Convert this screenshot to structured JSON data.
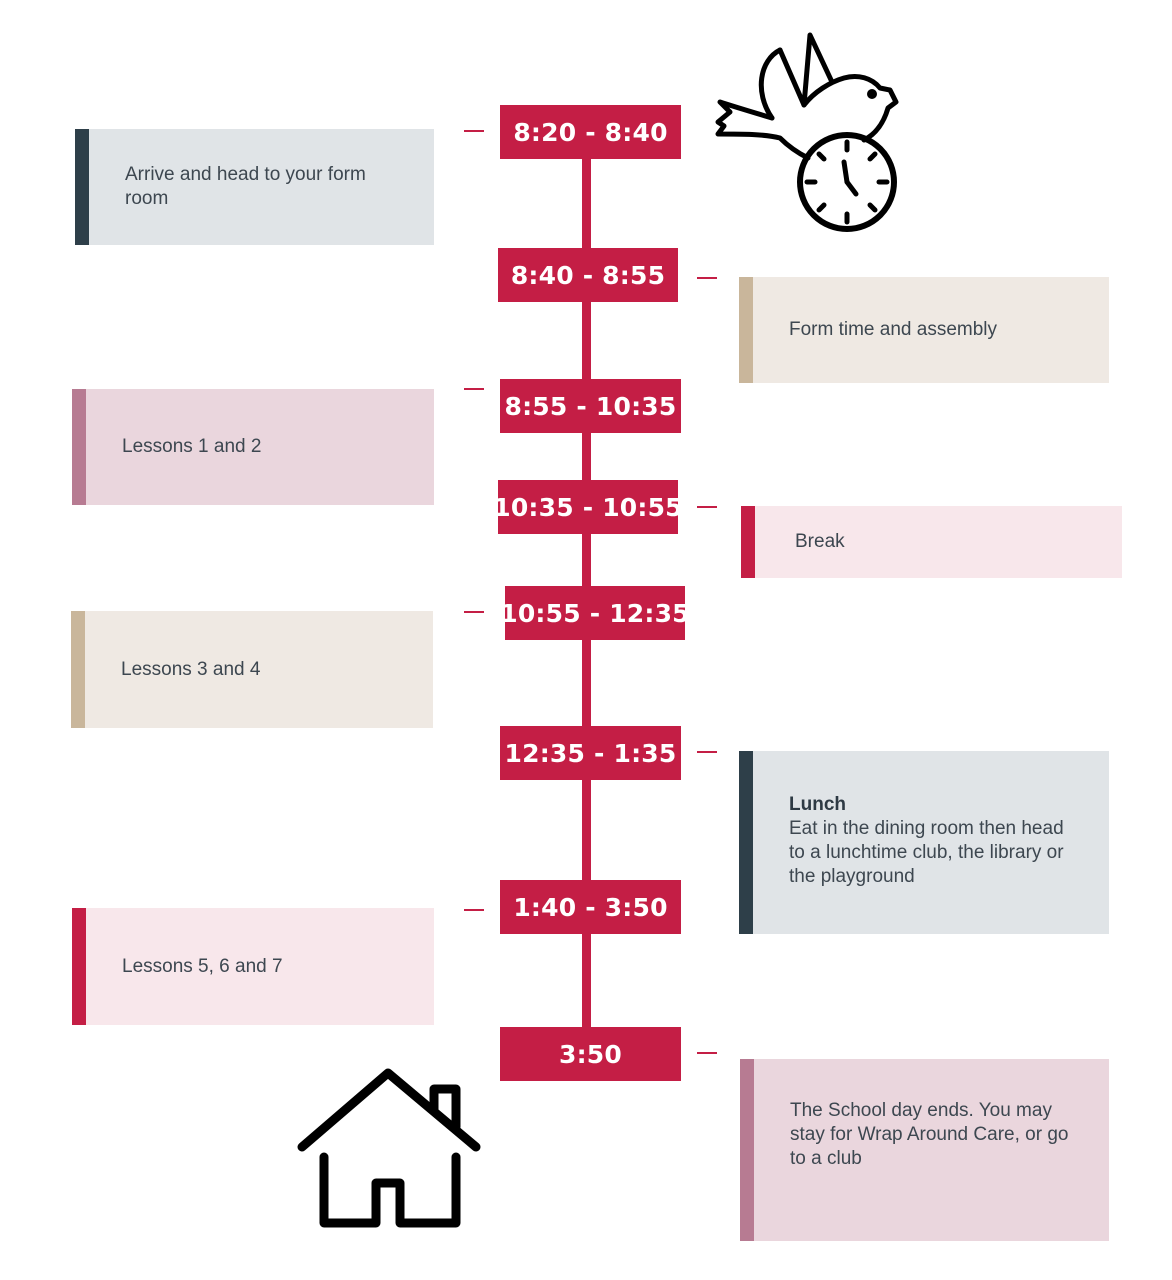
{
  "colors": {
    "accent": "#c41e45",
    "card_grey": "#e0e4e7",
    "bar_grey": "#2e3f49",
    "card_beige": "#efe9e3",
    "bar_beige": "#c9b69b",
    "card_mauve": "#ead6dd",
    "bar_mauve": "#b77b92",
    "card_pink": "#f8e7eb"
  },
  "icons": [
    "bird-with-clock-icon",
    "house-icon"
  ],
  "timeline": [
    {
      "time": "8:20 - 8:40",
      "text": "Arrive and head to your form room",
      "side": "left",
      "style": "grey"
    },
    {
      "time": "8:40 - 8:55",
      "text": "Form time and assembly",
      "side": "right",
      "style": "beige"
    },
    {
      "time": "8:55 - 10:35",
      "text": "Lessons 1 and 2",
      "side": "left",
      "style": "mauve"
    },
    {
      "time": "10:35 - 10:55",
      "text": "Break",
      "side": "right",
      "style": "pink"
    },
    {
      "time": "10:55 - 12:35",
      "text": "Lessons 3 and 4",
      "side": "left",
      "style": "beige"
    },
    {
      "time": "12:35 - 1:35",
      "title": "Lunch",
      "text": "Eat in the dining room then head to a lunchtime club, the library or the playground",
      "side": "right",
      "style": "grey"
    },
    {
      "time": "1:40 - 3:50",
      "text": "Lessons 5, 6 and 7",
      "side": "left",
      "style": "pink"
    },
    {
      "time": "3:50",
      "text": "The School day ends. You may stay for Wrap Around Care, or go to a club",
      "side": "right",
      "style": "mauve"
    }
  ]
}
